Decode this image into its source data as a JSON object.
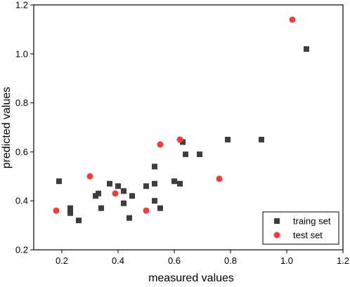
{
  "chart_data": {
    "type": "scatter",
    "xlabel": "measured values",
    "ylabel": "predicted values",
    "xlim": [
      0.1,
      1.2
    ],
    "ylim": [
      0.2,
      1.2
    ],
    "xticks": [
      "0.2",
      "0.4",
      "0.6",
      "0.8",
      "1.0",
      "1.2"
    ],
    "yticks": [
      "0.2",
      "0.4",
      "0.6",
      "0.8",
      "1.0",
      "1.2"
    ],
    "legend_position": "bottom-right",
    "series": [
      {
        "name": "traing set",
        "marker": "square",
        "color": "#3d3d3d",
        "points": [
          [
            0.19,
            0.48
          ],
          [
            0.23,
            0.37
          ],
          [
            0.23,
            0.35
          ],
          [
            0.26,
            0.32
          ],
          [
            0.32,
            0.42
          ],
          [
            0.33,
            0.43
          ],
          [
            0.34,
            0.37
          ],
          [
            0.37,
            0.47
          ],
          [
            0.4,
            0.46
          ],
          [
            0.42,
            0.39
          ],
          [
            0.42,
            0.44
          ],
          [
            0.44,
            0.33
          ],
          [
            0.45,
            0.42
          ],
          [
            0.5,
            0.46
          ],
          [
            0.53,
            0.47
          ],
          [
            0.53,
            0.54
          ],
          [
            0.53,
            0.4
          ],
          [
            0.55,
            0.37
          ],
          [
            0.6,
            0.48
          ],
          [
            0.62,
            0.47
          ],
          [
            0.63,
            0.64
          ],
          [
            0.64,
            0.59
          ],
          [
            0.69,
            0.59
          ],
          [
            0.79,
            0.65
          ],
          [
            0.91,
            0.65
          ],
          [
            1.07,
            1.02
          ]
        ]
      },
      {
        "name": "test set",
        "marker": "circle",
        "color": "#f23b3b",
        "points": [
          [
            0.18,
            0.36
          ],
          [
            0.3,
            0.5
          ],
          [
            0.39,
            0.43
          ],
          [
            0.5,
            0.36
          ],
          [
            0.55,
            0.63
          ],
          [
            0.62,
            0.65
          ],
          [
            0.76,
            0.49
          ],
          [
            1.02,
            1.14
          ]
        ]
      }
    ]
  }
}
